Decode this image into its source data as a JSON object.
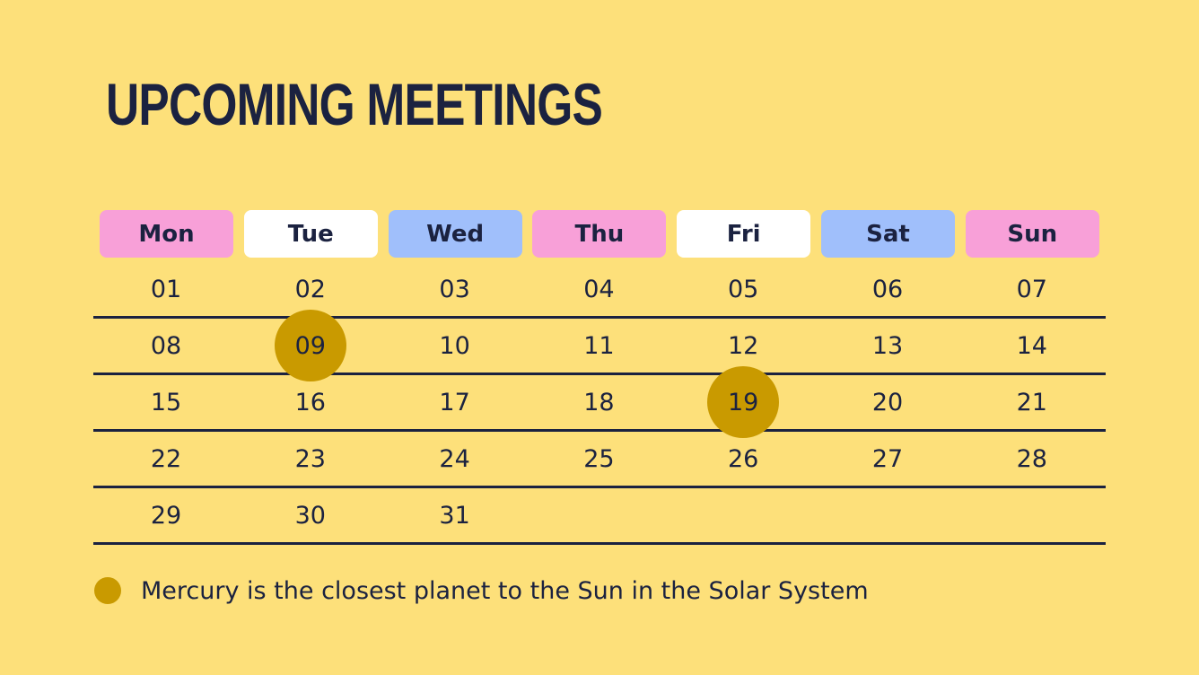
{
  "title": "UPCOMING MEETINGS",
  "colors": {
    "background": "#fde07a",
    "text": "#1b2240",
    "pink": "#f8a0d8",
    "white": "#ffffff",
    "blue": "#a0bffb",
    "marker": "#c99a00"
  },
  "calendar": {
    "weekdays": [
      {
        "label": "Mon",
        "color": "#f8a0d8"
      },
      {
        "label": "Tue",
        "color": "#ffffff"
      },
      {
        "label": "Wed",
        "color": "#a0bffb"
      },
      {
        "label": "Thu",
        "color": "#f8a0d8"
      },
      {
        "label": "Fri",
        "color": "#ffffff"
      },
      {
        "label": "Sat",
        "color": "#a0bffb"
      },
      {
        "label": "Sun",
        "color": "#f8a0d8"
      }
    ],
    "weeks": [
      [
        "01",
        "02",
        "03",
        "04",
        "05",
        "06",
        "07"
      ],
      [
        "08",
        "09",
        "10",
        "11",
        "12",
        "13",
        "14"
      ],
      [
        "15",
        "16",
        "17",
        "18",
        "19",
        "20",
        "21"
      ],
      [
        "22",
        "23",
        "24",
        "25",
        "26",
        "27",
        "28"
      ],
      [
        "29",
        "30",
        "31",
        "",
        "",
        "",
        ""
      ]
    ],
    "highlighted_days": [
      "09",
      "19"
    ]
  },
  "legend": {
    "text": "Mercury is the closest planet to the Sun in the Solar System",
    "color": "#c99a00"
  }
}
